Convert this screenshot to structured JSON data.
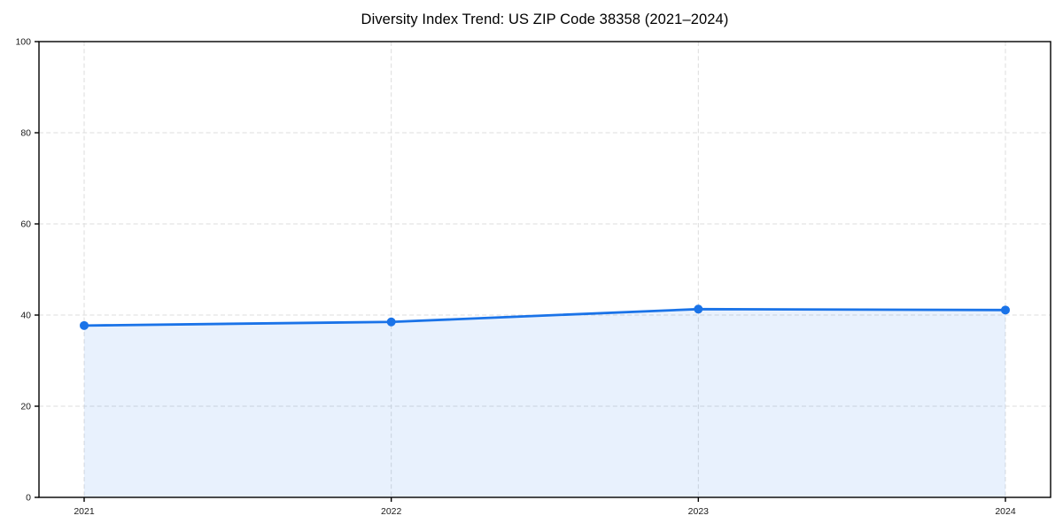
{
  "chart_data": {
    "type": "area",
    "title": "Diversity Index Trend: US ZIP Code 38358 (2021–2024)",
    "categories": [
      "2021",
      "2022",
      "2023",
      "2024"
    ],
    "series": [
      {
        "name": "Diversity Index",
        "values": [
          37.7,
          38.5,
          41.3,
          41.1
        ]
      }
    ],
    "xlabel": "",
    "ylabel": "",
    "ylim": [
      0,
      100
    ],
    "y_ticks": [
      0,
      20,
      40,
      60,
      80,
      100
    ],
    "grid": true,
    "grid_style": "dashed",
    "legend": false,
    "line_color": "#1a73e8",
    "fill_color": "rgba(26,115,232,0.10)",
    "grid_color": "#dcdcdc",
    "marker": "circle"
  }
}
